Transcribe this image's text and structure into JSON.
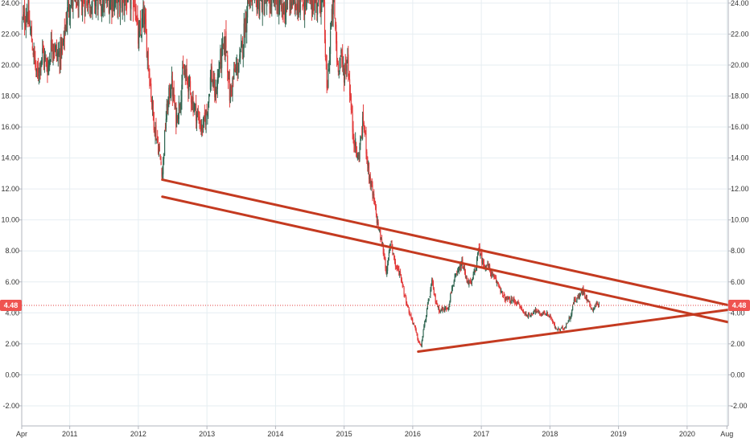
{
  "chart_data": {
    "type": "candlestick",
    "x_unit": "year",
    "xlim": [
      2010.3,
      2020.6
    ],
    "ylim": [
      -3.3,
      24.2
    ],
    "grid": true,
    "y_ticks": [
      -2,
      0,
      2,
      4,
      6,
      8,
      10,
      12,
      14,
      16,
      18,
      20,
      22,
      24
    ],
    "y_tick_labels": [
      "-2.00",
      "0.00",
      "2.00",
      "4.00",
      "6.00",
      "8.00",
      "10.00",
      "12.00",
      "14.00",
      "16.00",
      "18.00",
      "20.00",
      "22.00",
      "24.00"
    ],
    "x_ticks": [
      {
        "x": 2010.3,
        "label": "Apr"
      },
      {
        "x": 2011.0,
        "label": "2011"
      },
      {
        "x": 2012.0,
        "label": "2012"
      },
      {
        "x": 2013.0,
        "label": "2013"
      },
      {
        "x": 2014.0,
        "label": "2014"
      },
      {
        "x": 2015.0,
        "label": "2015"
      },
      {
        "x": 2016.0,
        "label": "2016"
      },
      {
        "x": 2017.0,
        "label": "2017"
      },
      {
        "x": 2018.0,
        "label": "2018"
      },
      {
        "x": 2019.0,
        "label": "2019"
      },
      {
        "x": 2020.0,
        "label": "2020"
      },
      {
        "x": 2020.58,
        "label": "Aug"
      }
    ],
    "current_price": 4.48,
    "current_price_label": "4.48",
    "colors": {
      "up": "#336854",
      "down": "#e23c3c",
      "trendline": "#c43a20",
      "price_line": "#e23c3c",
      "badge": "#ef5350",
      "grid": "#e6eef2"
    },
    "trendlines": [
      {
        "x1": 2012.35,
        "y1": 12.6,
        "x2": 2020.6,
        "y2": 4.5
      },
      {
        "x1": 2012.35,
        "y1": 11.5,
        "x2": 2020.6,
        "y2": 3.4
      },
      {
        "x1": 2016.08,
        "y1": 1.5,
        "x2": 2020.6,
        "y2": 4.2
      }
    ],
    "price_path": [
      [
        2010.3,
        22.6
      ],
      [
        2010.38,
        23.5
      ],
      [
        2010.46,
        21.2
      ],
      [
        2010.52,
        19.2
      ],
      [
        2010.6,
        20.8
      ],
      [
        2010.68,
        19.8
      ],
      [
        2010.74,
        21.6
      ],
      [
        2010.82,
        20.6
      ],
      [
        2010.9,
        21.0
      ],
      [
        2010.95,
        23.0
      ],
      [
        2011.0,
        24.2
      ],
      [
        2011.95,
        24.2
      ],
      [
        2012.0,
        21.5
      ],
      [
        2012.08,
        23.2
      ],
      [
        2012.15,
        20.0
      ],
      [
        2012.22,
        16.5
      ],
      [
        2012.3,
        14.5
      ],
      [
        2012.35,
        13.0
      ],
      [
        2012.4,
        16.5
      ],
      [
        2012.48,
        19.0
      ],
      [
        2012.55,
        16.5
      ],
      [
        2012.6,
        17.5
      ],
      [
        2012.65,
        19.5
      ],
      [
        2012.72,
        19.0
      ],
      [
        2012.8,
        17.5
      ],
      [
        2012.88,
        16.5
      ],
      [
        2012.93,
        15.8
      ],
      [
        2013.0,
        17.0
      ],
      [
        2013.06,
        19.5
      ],
      [
        2013.12,
        18.0
      ],
      [
        2013.2,
        20.5
      ],
      [
        2013.28,
        21.5
      ],
      [
        2013.33,
        18.0
      ],
      [
        2013.4,
        19.5
      ],
      [
        2013.48,
        20.2
      ],
      [
        2013.55,
        22.5
      ],
      [
        2013.6,
        24.2
      ],
      [
        2014.05,
        24.2
      ],
      [
        2014.1,
        23.5
      ],
      [
        2014.18,
        24.2
      ],
      [
        2014.7,
        24.2
      ],
      [
        2014.75,
        18.0
      ],
      [
        2014.8,
        22.0
      ],
      [
        2014.85,
        24.2
      ],
      [
        2014.9,
        20.0
      ],
      [
        2014.95,
        20.5
      ],
      [
        2015.0,
        19.5
      ],
      [
        2015.05,
        20.5
      ],
      [
        2015.12,
        16.0
      ],
      [
        2015.2,
        13.8
      ],
      [
        2015.28,
        16.5
      ],
      [
        2015.36,
        13.0
      ],
      [
        2015.42,
        11.5
      ],
      [
        2015.5,
        9.5
      ],
      [
        2015.58,
        7.8
      ],
      [
        2015.62,
        6.5
      ],
      [
        2015.68,
        8.8
      ],
      [
        2015.75,
        7.0
      ],
      [
        2015.82,
        6.5
      ],
      [
        2015.88,
        5.2
      ],
      [
        2015.95,
        4.0
      ],
      [
        2016.02,
        3.2
      ],
      [
        2016.08,
        2.2
      ],
      [
        2016.12,
        1.8
      ],
      [
        2016.16,
        3.0
      ],
      [
        2016.22,
        4.5
      ],
      [
        2016.28,
        6.0
      ],
      [
        2016.32,
        5.0
      ],
      [
        2016.38,
        4.2
      ],
      [
        2016.45,
        4.2
      ],
      [
        2016.52,
        4.4
      ],
      [
        2016.58,
        5.8
      ],
      [
        2016.65,
        6.5
      ],
      [
        2016.72,
        7.2
      ],
      [
        2016.78,
        6.2
      ],
      [
        2016.85,
        5.8
      ],
      [
        2016.92,
        7.0
      ],
      [
        2016.97,
        8.2
      ],
      [
        2017.02,
        7.2
      ],
      [
        2017.1,
        7.0
      ],
      [
        2017.18,
        6.2
      ],
      [
        2017.26,
        5.8
      ],
      [
        2017.32,
        5.0
      ],
      [
        2017.4,
        4.8
      ],
      [
        2017.48,
        4.8
      ],
      [
        2017.55,
        4.5
      ],
      [
        2017.62,
        4.0
      ],
      [
        2017.7,
        3.8
      ],
      [
        2017.78,
        4.2
      ],
      [
        2017.85,
        3.9
      ],
      [
        2017.92,
        4.0
      ],
      [
        2018.0,
        3.8
      ],
      [
        2018.08,
        3.0
      ],
      [
        2018.15,
        2.9
      ],
      [
        2018.22,
        3.1
      ],
      [
        2018.3,
        3.8
      ],
      [
        2018.35,
        4.8
      ],
      [
        2018.42,
        5.0
      ],
      [
        2018.48,
        5.5
      ],
      [
        2018.55,
        4.8
      ],
      [
        2018.62,
        4.2
      ],
      [
        2018.68,
        4.6
      ],
      [
        2018.72,
        4.48
      ]
    ]
  }
}
